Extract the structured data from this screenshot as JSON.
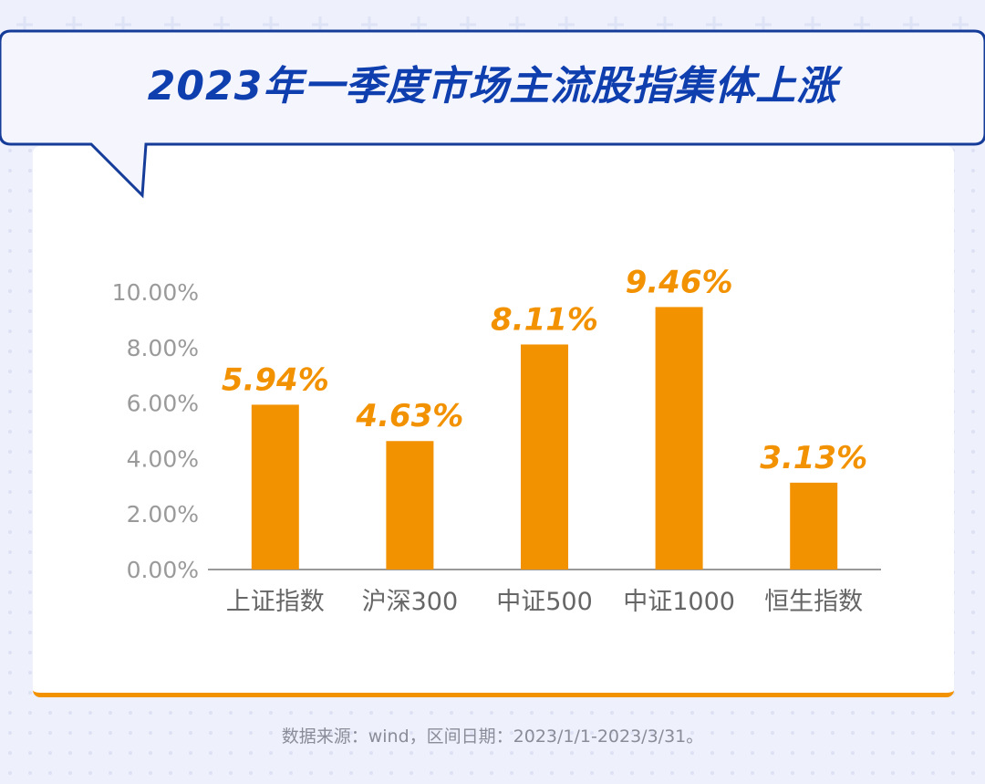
{
  "title": "2023年一季度市场主流股指集体上涨",
  "source_note": "数据来源：wind，区间日期：2023/1/1-2023/3/31。",
  "colors": {
    "background": "#eef0fb",
    "title": "#0f3fae",
    "bar": "#f39200",
    "value_label": "#f39200",
    "axis": "#999999"
  },
  "chart_data": {
    "type": "bar",
    "categories": [
      "上证指数",
      "沪深300",
      "中证500",
      "中证1000",
      "恒生指数"
    ],
    "values": [
      5.94,
      4.63,
      8.11,
      9.46,
      3.13
    ],
    "value_labels": [
      "5.94%",
      "4.63%",
      "8.11%",
      "9.46%",
      "3.13%"
    ],
    "yticks": [
      "0.00%",
      "2.00%",
      "4.00%",
      "6.00%",
      "8.00%",
      "10.00%"
    ],
    "ytick_values": [
      0,
      2,
      4,
      6,
      8,
      10
    ],
    "ylim": [
      0,
      10
    ],
    "grid": false,
    "legend": "none"
  }
}
